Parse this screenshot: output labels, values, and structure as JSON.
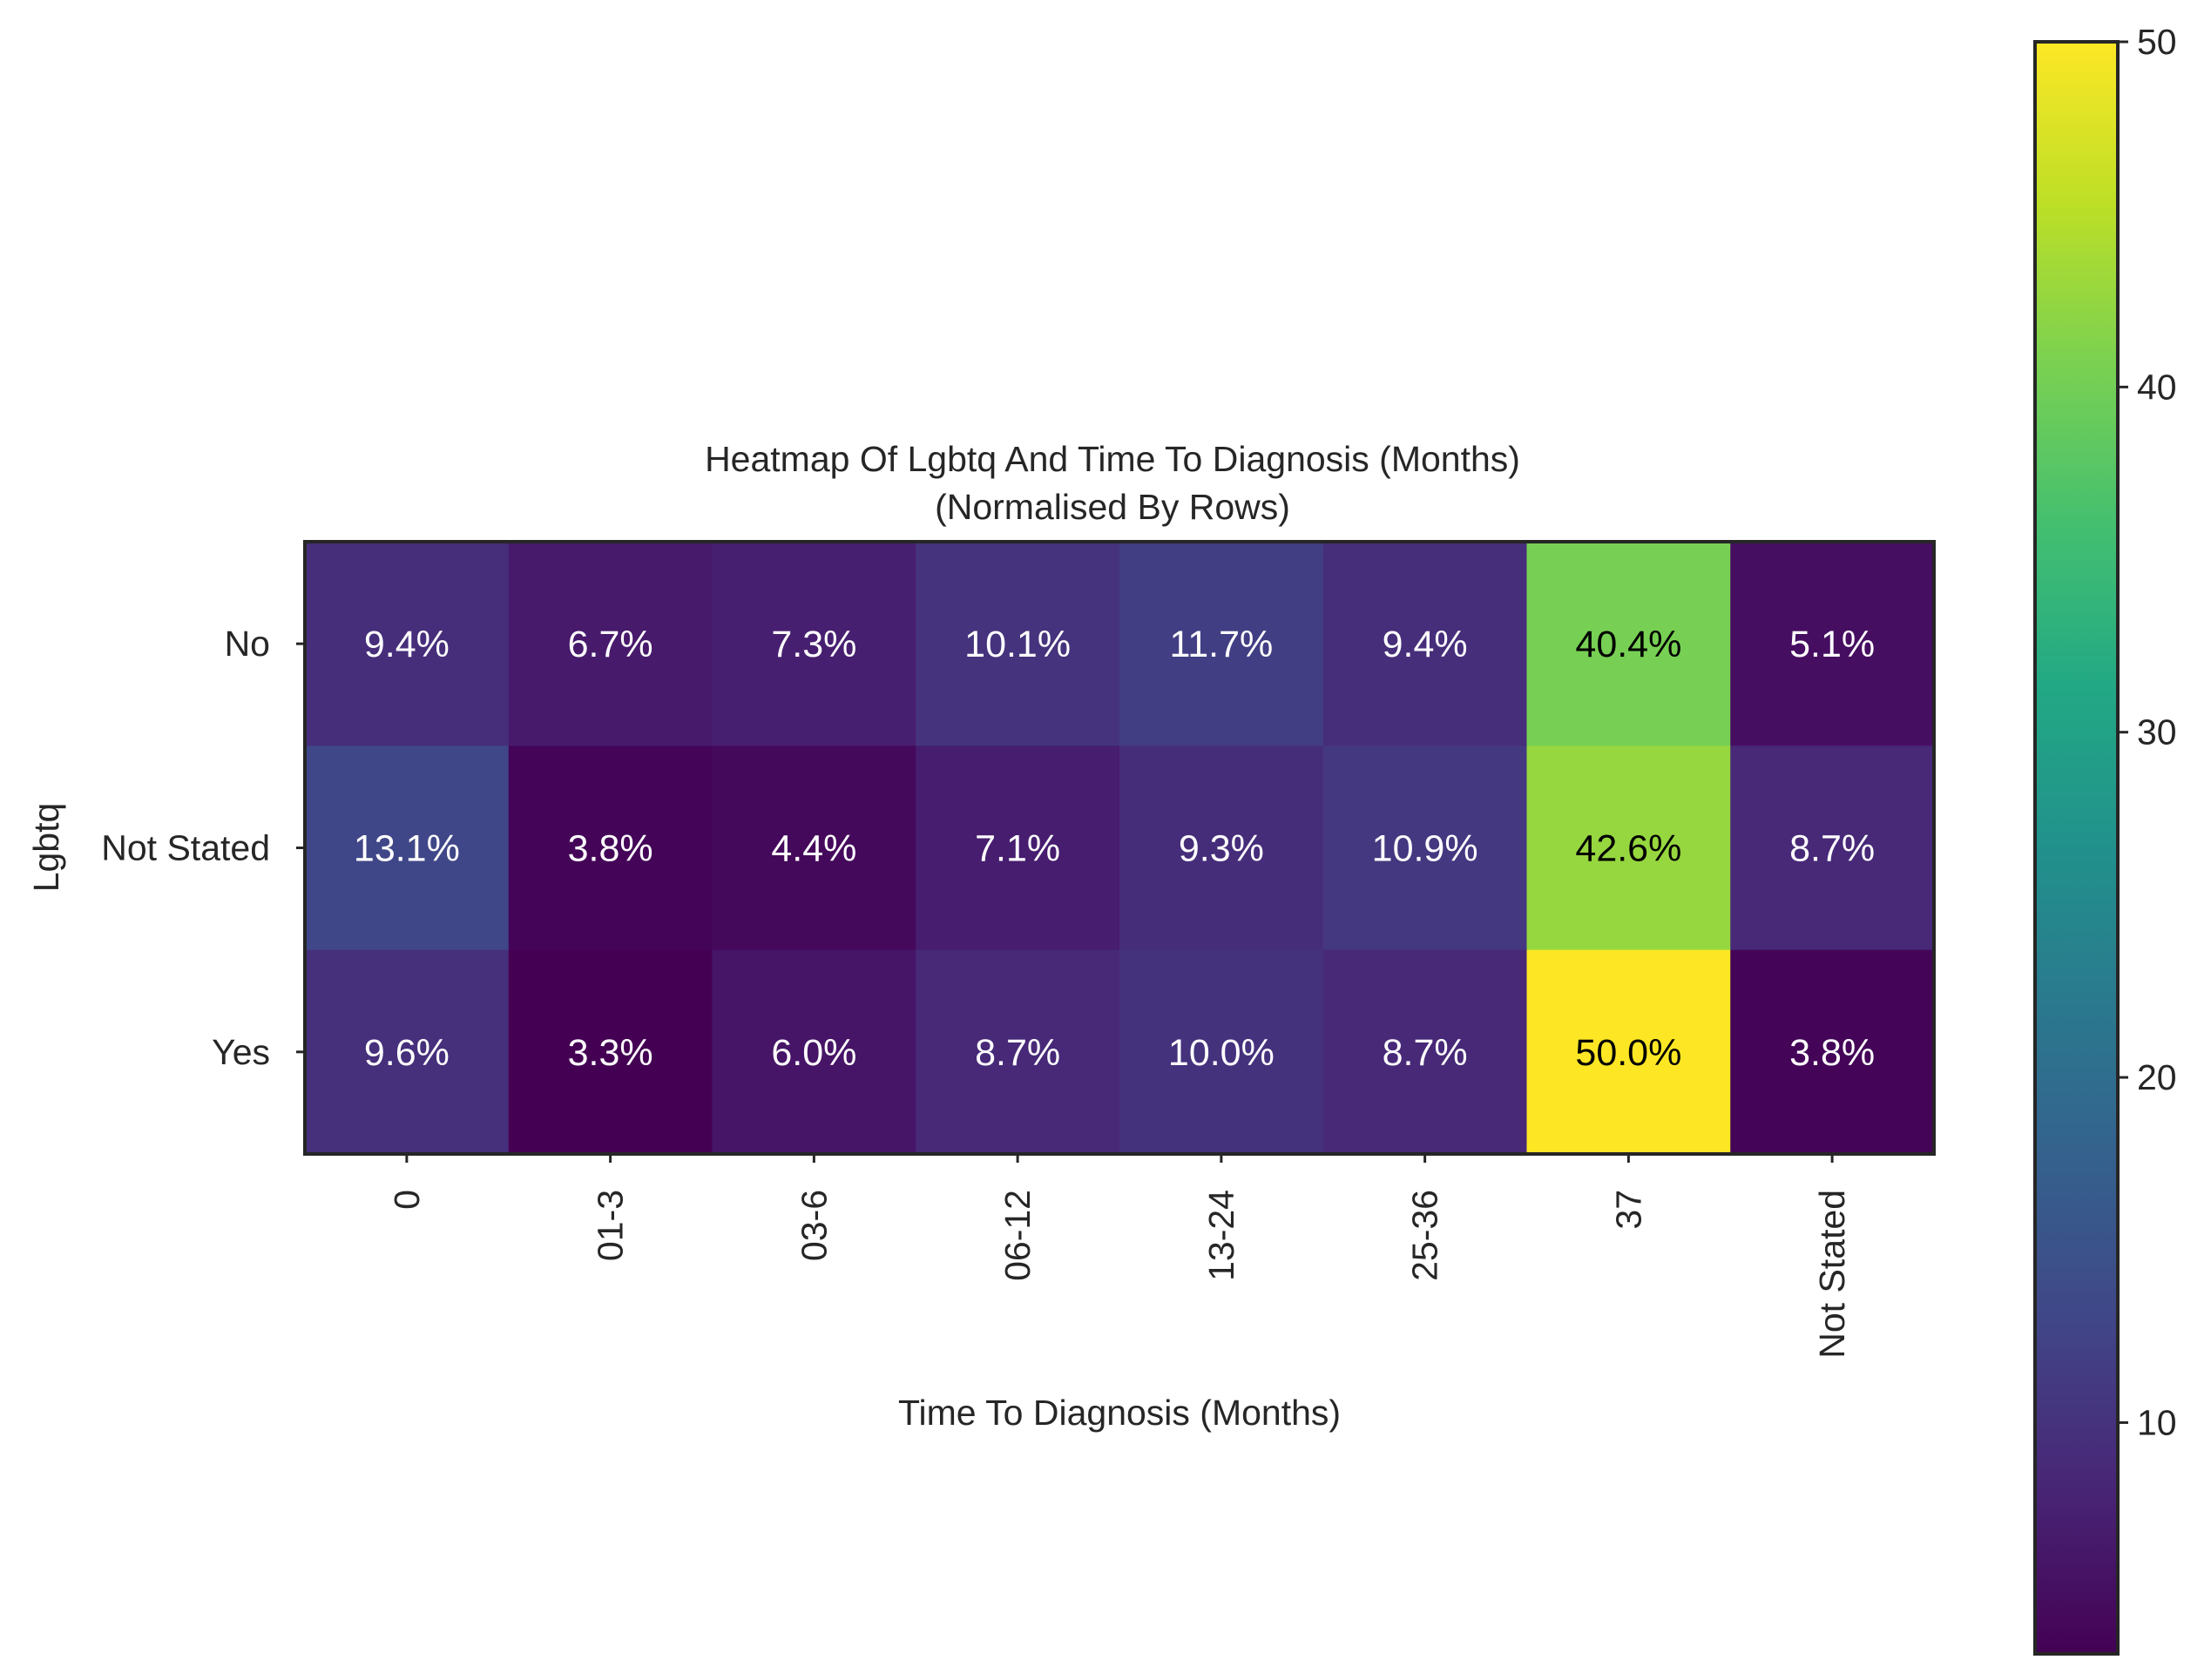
{
  "chart_data": {
    "type": "heatmap",
    "title": "Heatmap Of Lgbtq And Time To Diagnosis (Months)",
    "subtitle": "(Normalised By Rows)",
    "xlabel": "Time To Diagnosis (Months)",
    "ylabel": "Lgbtq",
    "x_categories": [
      "0",
      "01-3",
      "03-6",
      "06-12",
      "13-24",
      "25-36",
      "37",
      "Not Stated"
    ],
    "y_categories": [
      "No",
      "Not Stated",
      "Yes"
    ],
    "values": [
      [
        9.4,
        6.7,
        7.3,
        10.1,
        11.7,
        9.4,
        40.4,
        5.1
      ],
      [
        13.1,
        3.8,
        4.4,
        7.1,
        9.3,
        10.9,
        42.6,
        8.7
      ],
      [
        9.6,
        3.3,
        6.0,
        8.7,
        10.0,
        8.7,
        50.0,
        3.8
      ]
    ],
    "cell_labels": [
      [
        "9.4%",
        "6.7%",
        "7.3%",
        "10.1%",
        "11.7%",
        "9.4%",
        "40.4%",
        "5.1%"
      ],
      [
        "13.1%",
        "3.8%",
        "4.4%",
        "7.1%",
        "9.3%",
        "10.9%",
        "42.6%",
        "8.7%"
      ],
      [
        "9.6%",
        "3.3%",
        "6.0%",
        "8.7%",
        "10.0%",
        "8.7%",
        "50.0%",
        "3.8%"
      ]
    ],
    "colormap": "viridis",
    "colorbar": {
      "range": [
        3.3,
        50.0
      ],
      "ticks": [
        10,
        20,
        30,
        40,
        50
      ],
      "tick_labels": [
        "10",
        "20",
        "30",
        "40",
        "50"
      ]
    },
    "legend": "colorbar-right",
    "grid": false
  }
}
